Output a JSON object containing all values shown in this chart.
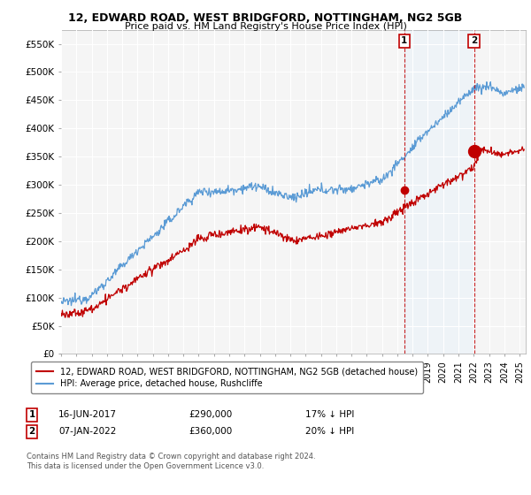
{
  "title_line1": "12, EDWARD ROAD, WEST BRIDGFORD, NOTTINGHAM, NG2 5GB",
  "title_line2": "Price paid vs. HM Land Registry's House Price Index (HPI)",
  "ylabel_ticks": [
    "£0",
    "£50K",
    "£100K",
    "£150K",
    "£200K",
    "£250K",
    "£300K",
    "£350K",
    "£400K",
    "£450K",
    "£500K",
    "£550K"
  ],
  "ytick_vals": [
    0,
    50000,
    100000,
    150000,
    200000,
    250000,
    300000,
    350000,
    400000,
    450000,
    500000,
    550000
  ],
  "ylim": [
    0,
    575000
  ],
  "xlim_start": 1995.0,
  "xlim_end": 2025.4,
  "hpi_color": "#5b9bd5",
  "price_color": "#c00000",
  "shade_color": "#ddeeff",
  "annotation_box_color": "#c00000",
  "legend_label_price": "12, EDWARD ROAD, WEST BRIDGFORD, NOTTINGHAM, NG2 5GB (detached house)",
  "legend_label_hpi": "HPI: Average price, detached house, Rushcliffe",
  "sale1_date": "16-JUN-2017",
  "sale1_price": "£290,000",
  "sale1_info": "17% ↓ HPI",
  "sale1_x": 2017.46,
  "sale1_y": 290000,
  "sale2_date": "07-JAN-2022",
  "sale2_price": "£360,000",
  "sale2_info": "20% ↓ HPI",
  "sale2_x": 2022.02,
  "sale2_y": 360000,
  "footnote": "Contains HM Land Registry data © Crown copyright and database right 2024.\nThis data is licensed under the Open Government Licence v3.0.",
  "bg_color": "#ffffff",
  "plot_bg_color": "#f5f5f5",
  "grid_color": "#ffffff"
}
